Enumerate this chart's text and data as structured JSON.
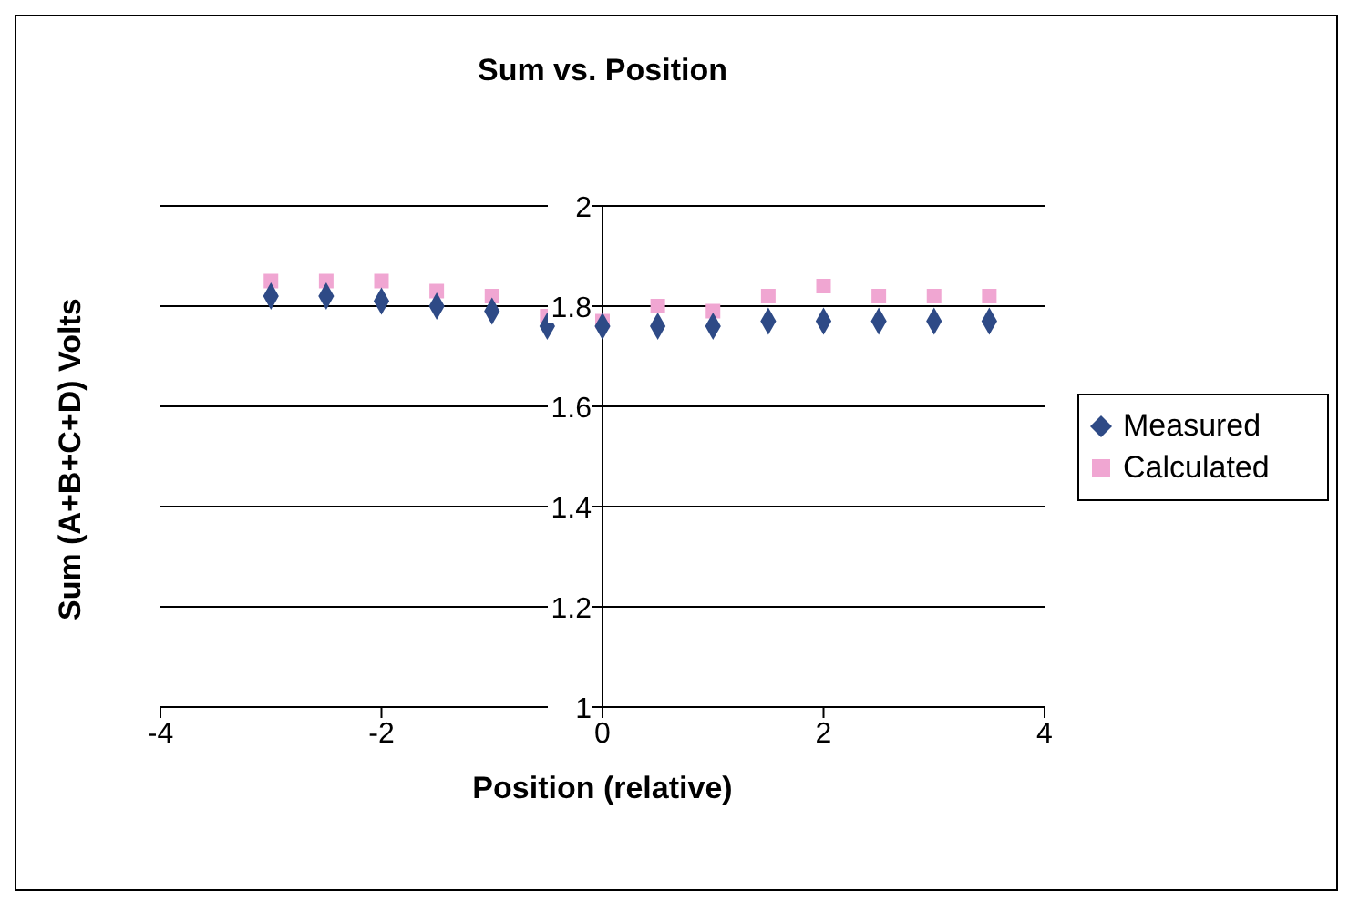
{
  "chart_data": {
    "type": "scatter",
    "title": "Sum vs. Position",
    "xlabel": "Position (relative)",
    "ylabel": "Sum (A+B+C+D) Volts",
    "x": [
      -3,
      -2.5,
      -2,
      -1.5,
      -1,
      -0.5,
      0,
      0.5,
      1,
      1.5,
      2,
      2.5,
      3,
      3.5
    ],
    "series": [
      {
        "name": "Measured",
        "color": "#2e4a86",
        "marker": "diamond",
        "values": [
          1.82,
          1.82,
          1.81,
          1.8,
          1.79,
          1.76,
          1.76,
          1.76,
          1.76,
          1.77,
          1.77,
          1.77,
          1.77,
          1.77
        ]
      },
      {
        "name": "Calculated",
        "color": "#f0a6d2",
        "marker": "square",
        "values": [
          1.85,
          1.85,
          1.85,
          1.83,
          1.82,
          1.78,
          1.77,
          1.8,
          1.79,
          1.82,
          1.84,
          1.82,
          1.82,
          1.82
        ]
      }
    ],
    "xlim": [
      -4,
      4
    ],
    "xticks": [
      -4,
      -2,
      0,
      2,
      4
    ],
    "ylim": [
      1,
      2
    ],
    "yticks": [
      1,
      1.2,
      1.4,
      1.6,
      1.8,
      2
    ],
    "grid": "y",
    "legend": "right"
  }
}
